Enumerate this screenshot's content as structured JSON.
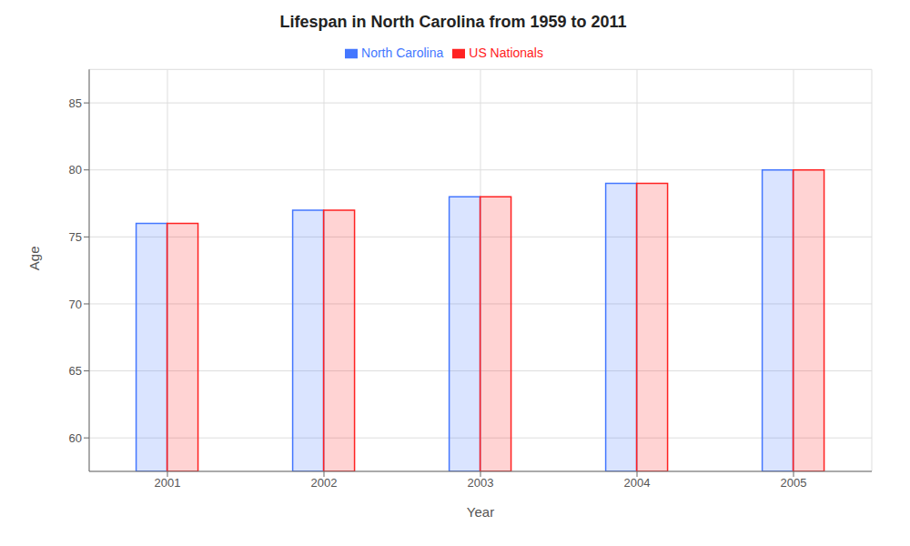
{
  "chart_data": {
    "type": "bar",
    "title": "Lifespan in North Carolina from 1959 to 2011",
    "x_label": "Year",
    "y_label": "Age",
    "categories": [
      "2001",
      "2002",
      "2003",
      "2004",
      "2005"
    ],
    "series": [
      {
        "name": "North Carolina",
        "color": "#4477ff",
        "values": [
          76,
          77,
          78,
          79,
          80
        ]
      },
      {
        "name": "US Nationals",
        "color": "#ff2222",
        "values": [
          76,
          77,
          78,
          79,
          80
        ]
      }
    ],
    "ylim": [
      57.5,
      87.5
    ],
    "yticks": [
      60,
      65,
      70,
      75,
      80,
      85
    ],
    "grid": true,
    "legend": "top"
  }
}
